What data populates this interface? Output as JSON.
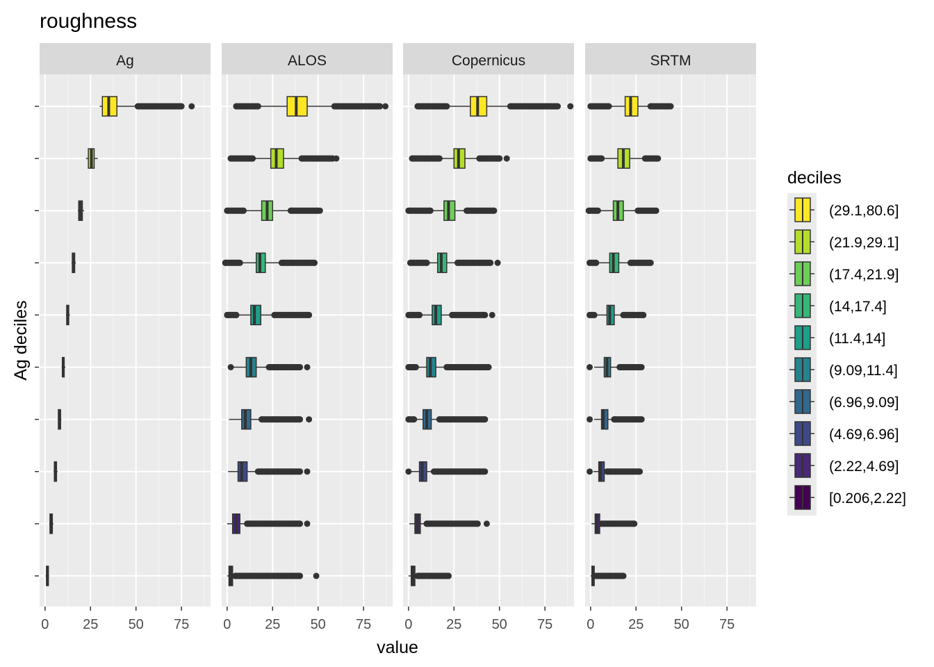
{
  "chart_data": {
    "type": "boxplot",
    "title": "roughness",
    "xlabel": "value",
    "ylabel": "Ag deciles",
    "xlim": [
      -3,
      91
    ],
    "x_ticks": [
      0,
      25,
      50,
      75
    ],
    "grid": true,
    "legend": {
      "title": "deciles",
      "position": "right",
      "entries": [
        {
          "label": "(29.1,80.6]",
          "color": "#FDE725"
        },
        {
          "label": "(21.9,29.1]",
          "color": "#B5DE2B"
        },
        {
          "label": "(17.4,21.9]",
          "color": "#6ECE58"
        },
        {
          "label": "(14,17.4]",
          "color": "#35B779"
        },
        {
          "label": "(11.4,14]",
          "color": "#1F9E89"
        },
        {
          "label": "(9.09,11.4]",
          "color": "#26828E"
        },
        {
          "label": "(6.96,9.09]",
          "color": "#31688E"
        },
        {
          "label": "(4.69,6.96]",
          "color": "#3E4989"
        },
        {
          "label": "(2.22,4.69]",
          "color": "#482878"
        },
        {
          "label": "[0.206,2.22]",
          "color": "#440154"
        }
      ]
    },
    "categories": [
      "(29.1,80.6]",
      "(21.9,29.1]",
      "(17.4,21.9]",
      "(14,17.4]",
      "(11.4,14]",
      "(9.09,11.4]",
      "(6.96,9.09]",
      "(4.69,6.96]",
      "(2.22,4.69]",
      "[0.206,2.22]"
    ],
    "panels": [
      {
        "name": "Ag",
        "boxes": [
          {
            "lo": 30,
            "q1": 31.5,
            "med": 35,
            "q3": 39.5,
            "hi": 51,
            "out": [
              51,
              75,
              80.6
            ]
          },
          {
            "lo": 22.5,
            "q1": 23.8,
            "med": 25.5,
            "q3": 27,
            "hi": 29,
            "out": []
          },
          {
            "lo": 18,
            "q1": 18.5,
            "med": 19.5,
            "q3": 20.5,
            "hi": 21.5,
            "out": []
          },
          {
            "lo": 14.5,
            "q1": 15,
            "med": 15.5,
            "q3": 16.3,
            "hi": 17,
            "out": []
          },
          {
            "lo": 11.5,
            "q1": 11.9,
            "med": 12.5,
            "q3": 13,
            "hi": 13.7,
            "out": []
          },
          {
            "lo": 9.1,
            "q1": 9.5,
            "med": 10,
            "q3": 10.5,
            "hi": 11.2,
            "out": []
          },
          {
            "lo": 7,
            "q1": 7.3,
            "med": 8,
            "q3": 8.5,
            "hi": 9,
            "out": []
          },
          {
            "lo": 4.7,
            "q1": 5.1,
            "med": 5.6,
            "q3": 6.3,
            "hi": 6.9,
            "out": []
          },
          {
            "lo": 2.3,
            "q1": 2.7,
            "med": 3.3,
            "q3": 4,
            "hi": 4.6,
            "out": []
          },
          {
            "lo": 0.3,
            "q1": 0.8,
            "med": 1.3,
            "q3": 1.8,
            "hi": 2.2,
            "out": []
          }
        ]
      },
      {
        "name": "ALOS",
        "boxes": [
          {
            "lo": 17,
            "q1": 33,
            "med": 38,
            "q3": 44,
            "hi": 59,
            "out": [
              5,
              17,
              59,
              80,
              84,
              87
            ]
          },
          {
            "lo": 14,
            "q1": 24,
            "med": 27,
            "q3": 31,
            "hi": 41,
            "out": [
              2,
              14,
              41,
              58,
              60
            ]
          },
          {
            "lo": 9,
            "q1": 19,
            "med": 22,
            "q3": 25,
            "hi": 35,
            "out": [
              0,
              9,
              35,
              50,
              51
            ]
          },
          {
            "lo": 7,
            "q1": 16,
            "med": 18,
            "q3": 21,
            "hi": 30,
            "out": [
              -1,
              7,
              30,
              48
            ]
          },
          {
            "lo": 5,
            "q1": 13,
            "med": 15,
            "q3": 18.5,
            "hi": 26,
            "out": [
              0,
              5,
              26,
              45
            ]
          },
          {
            "lo": 2,
            "q1": 10.5,
            "med": 13,
            "q3": 16,
            "hi": 23,
            "out": [
              2,
              23,
              40,
              44
            ]
          },
          {
            "lo": 1,
            "q1": 8,
            "med": 10,
            "q3": 13,
            "hi": 19,
            "out": [
              19,
              40,
              45
            ]
          },
          {
            "lo": 0.5,
            "q1": 6,
            "med": 8,
            "q3": 11,
            "hi": 17,
            "out": [
              17,
              40,
              44
            ]
          },
          {
            "lo": 0,
            "q1": 3,
            "med": 5,
            "q3": 7,
            "hi": 11,
            "out": [
              11,
              40,
              44
            ]
          },
          {
            "lo": 0,
            "q1": 1,
            "med": 2,
            "q3": 3,
            "hi": 4.5,
            "out": [
              4.5,
              40,
              49
            ]
          }
        ]
      },
      {
        "name": "Copernicus",
        "boxes": [
          {
            "lo": 21,
            "q1": 34,
            "med": 38,
            "q3": 43,
            "hi": 56,
            "out": [
              5,
              21,
              56,
              75,
              82,
              89
            ]
          },
          {
            "lo": 17,
            "q1": 25,
            "med": 27.5,
            "q3": 31,
            "hi": 39,
            "out": [
              2,
              17,
              39,
              50,
              54
            ]
          },
          {
            "lo": 12,
            "q1": 19.5,
            "med": 22,
            "q3": 25.5,
            "hi": 32,
            "out": [
              0,
              12,
              32,
              47
            ]
          },
          {
            "lo": 10,
            "q1": 16,
            "med": 18,
            "q3": 21,
            "hi": 27,
            "out": [
              1,
              10,
              27,
              45,
              49
            ]
          },
          {
            "lo": 6,
            "q1": 13,
            "med": 15,
            "q3": 18,
            "hi": 24,
            "out": [
              0,
              6,
              24,
              42,
              46
            ]
          },
          {
            "lo": 4,
            "q1": 10,
            "med": 12,
            "q3": 15,
            "hi": 21,
            "out": [
              0,
              4,
              21,
              44
            ]
          },
          {
            "lo": 3,
            "q1": 8,
            "med": 10,
            "q3": 12.5,
            "hi": 17,
            "out": [
              0,
              3,
              17,
              42
            ]
          },
          {
            "lo": 0.5,
            "q1": 6,
            "med": 7.5,
            "q3": 10,
            "hi": 14,
            "out": [
              0,
              14,
              42
            ]
          },
          {
            "lo": 0.5,
            "q1": 3.5,
            "med": 5,
            "q3": 6.5,
            "hi": 10,
            "out": [
              10,
              38,
              43
            ]
          },
          {
            "lo": 0,
            "q1": 1.5,
            "med": 2.5,
            "q3": 3.5,
            "hi": 5,
            "out": [
              5,
              22
            ]
          }
        ]
      },
      {
        "name": "SRTM",
        "boxes": [
          {
            "lo": 10,
            "q1": 19,
            "med": 22,
            "q3": 26,
            "hi": 33,
            "out": [
              0,
              10,
              33,
              44
            ]
          },
          {
            "lo": 6,
            "q1": 15,
            "med": 18,
            "q3": 21.5,
            "hi": 30,
            "out": [
              0,
              6,
              30,
              37
            ]
          },
          {
            "lo": 4,
            "q1": 12.5,
            "med": 15,
            "q3": 18,
            "hi": 26,
            "out": [
              -1,
              4,
              26,
              36
            ]
          },
          {
            "lo": 3,
            "q1": 10.5,
            "med": 12.5,
            "q3": 15.5,
            "hi": 22,
            "out": [
              -0.5,
              3,
              22,
              33
            ]
          },
          {
            "lo": 2,
            "q1": 9,
            "med": 10.5,
            "q3": 13,
            "hi": 18,
            "out": [
              -0.5,
              2,
              18,
              29
            ]
          },
          {
            "lo": 2,
            "q1": 7.5,
            "med": 9,
            "q3": 11,
            "hi": 16,
            "out": [
              -0.5,
              16,
              28
            ]
          },
          {
            "lo": 2,
            "q1": 6,
            "med": 7,
            "q3": 9.5,
            "hi": 13,
            "out": [
              -0.5,
              13,
              28
            ]
          },
          {
            "lo": 1.5,
            "q1": 4.5,
            "med": 5.5,
            "q3": 7.5,
            "hi": 9,
            "out": [
              -0.5,
              9,
              27
            ]
          },
          {
            "lo": 0.5,
            "q1": 2.5,
            "med": 3.5,
            "q3": 5,
            "hi": 6,
            "out": [
              6,
              24
            ]
          },
          {
            "lo": 0,
            "q1": 0.7,
            "med": 1.3,
            "q3": 2,
            "hi": 3,
            "out": [
              3,
              18
            ]
          }
        ]
      }
    ]
  }
}
